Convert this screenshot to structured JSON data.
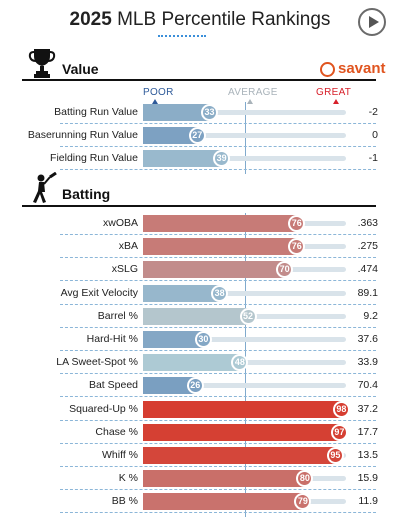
{
  "header": {
    "title_bold": "2025",
    "title_rest": " MLB Percentile Rankings"
  },
  "icons": {
    "play": "play-icon",
    "trophy": "trophy-icon",
    "batter": "batter-icon",
    "savant_logo": "savant-ball-icon"
  },
  "brand": {
    "name": "savant",
    "color": "#e0541f"
  },
  "scale": {
    "poor": "POOR",
    "average": "AVERAGE",
    "great": "GREAT",
    "poor_color": "#2e5a99",
    "average_color": "#a9b3ba",
    "great_color": "#d7202a"
  },
  "chart_data": {
    "type": "bar",
    "orientation": "horizontal",
    "xlim": [
      0,
      100
    ],
    "sections": [
      {
        "title": "Value",
        "metrics": [
          {
            "label": "Batting Run Value",
            "percentile": 33,
            "value": "-2"
          },
          {
            "label": "Baserunning Run Value",
            "percentile": 27,
            "value": "0"
          },
          {
            "label": "Fielding Run Value",
            "percentile": 39,
            "value": "-1"
          }
        ]
      },
      {
        "title": "Batting",
        "metrics": [
          {
            "label": "xwOBA",
            "percentile": 76,
            "value": ".363"
          },
          {
            "label": "xBA",
            "percentile": 76,
            "value": ".275"
          },
          {
            "label": "xSLG",
            "percentile": 70,
            "value": ".474"
          },
          {
            "label": "Avg Exit Velocity",
            "percentile": 38,
            "value": "89.1"
          },
          {
            "label": "Barrel %",
            "percentile": 52,
            "value": "9.2"
          },
          {
            "label": "Hard-Hit %",
            "percentile": 30,
            "value": "37.6"
          },
          {
            "label": "LA Sweet-Spot %",
            "percentile": 48,
            "value": "33.9"
          },
          {
            "label": "Bat Speed",
            "percentile": 26,
            "value": "70.4"
          },
          {
            "label": "Squared-Up %",
            "percentile": 98,
            "value": "37.2"
          },
          {
            "label": "Chase %",
            "percentile": 97,
            "value": "17.7"
          },
          {
            "label": "Whiff %",
            "percentile": 95,
            "value": "13.5"
          },
          {
            "label": "K %",
            "percentile": 80,
            "value": "15.9"
          },
          {
            "label": "BB %",
            "percentile": 79,
            "value": "11.9"
          }
        ]
      }
    ]
  }
}
